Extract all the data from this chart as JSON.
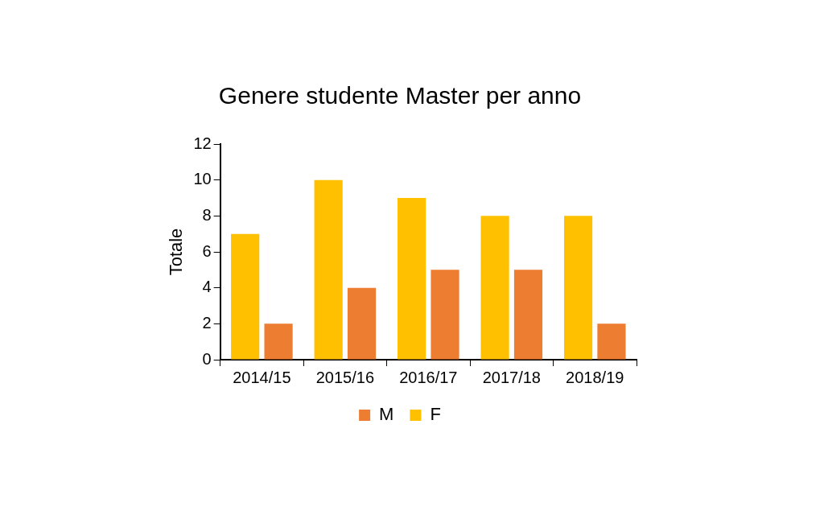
{
  "chart_data": {
    "type": "bar",
    "title": "Genere studente Master per anno",
    "ylabel": "Totale",
    "categories": [
      "2014/15",
      "2015/16",
      "2016/17",
      "2017/18",
      "2018/19"
    ],
    "series": [
      {
        "name": "F",
        "color": "#ffc000",
        "values": [
          7,
          10,
          9,
          8,
          8
        ]
      },
      {
        "name": "M",
        "color": "#ed7d31",
        "values": [
          2,
          4,
          5,
          5,
          2
        ]
      }
    ],
    "ylim": [
      0,
      12
    ],
    "yticks": [
      0,
      2,
      4,
      6,
      8,
      10,
      12
    ],
    "legend": "bottom"
  }
}
